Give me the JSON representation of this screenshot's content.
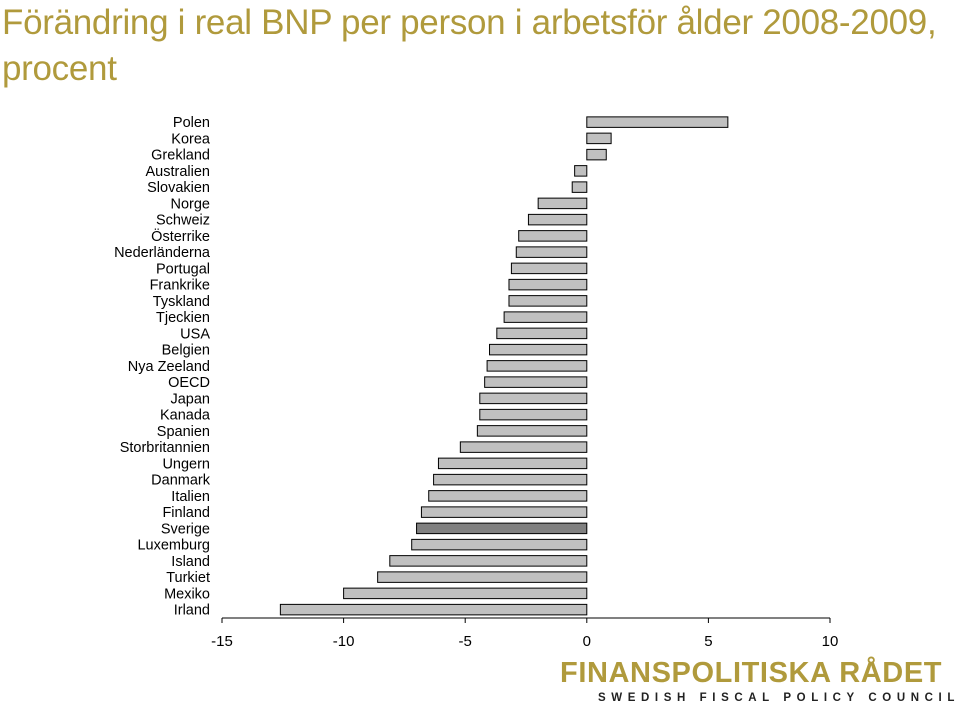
{
  "colors": {
    "title": "#b09a3c",
    "bar": "#c0c0c0",
    "bar_highlight": "#808080",
    "bar_edge": "#000000",
    "axis": "#000000",
    "logo": "#b09a3c"
  },
  "chart_data": {
    "type": "bar",
    "orientation": "horizontal",
    "title": "Förändring i real BNP per person i arbetsför ålder 2008-2009, procent",
    "xlabel": "",
    "ylabel": "",
    "xlim": [
      -15,
      10
    ],
    "xticks": [
      -15,
      -10,
      -5,
      0,
      5,
      10
    ],
    "grid": false,
    "highlight": "Sverige",
    "categories": [
      "Polen",
      "Korea",
      "Grekland",
      "Australien",
      "Slovakien",
      "Norge",
      "Schweiz",
      "Österrike",
      "Nederländerna",
      "Portugal",
      "Frankrike",
      "Tyskland",
      "Tjeckien",
      "USA",
      "Belgien",
      "Nya Zeeland",
      "OECD",
      "Japan",
      "Kanada",
      "Spanien",
      "Storbritannien",
      "Ungern",
      "Danmark",
      "Italien",
      "Finland",
      "Sverige",
      "Luxemburg",
      "Island",
      "Turkiet",
      "Mexiko",
      "Irland"
    ],
    "values": [
      5.8,
      1.0,
      0.8,
      -0.5,
      -0.6,
      -2.0,
      -2.4,
      -2.8,
      -2.9,
      -3.1,
      -3.2,
      -3.2,
      -3.4,
      -3.7,
      -4.0,
      -4.1,
      -4.2,
      -4.4,
      -4.4,
      -4.5,
      -5.2,
      -6.1,
      -6.3,
      -6.5,
      -6.8,
      -7.0,
      -7.2,
      -8.1,
      -8.6,
      -10.0,
      -12.6
    ]
  },
  "logo": {
    "name": "FINANSPOLITISKA RÅDET",
    "subtitle": "SWEDISH FISCAL POLICY COUNCIL"
  }
}
